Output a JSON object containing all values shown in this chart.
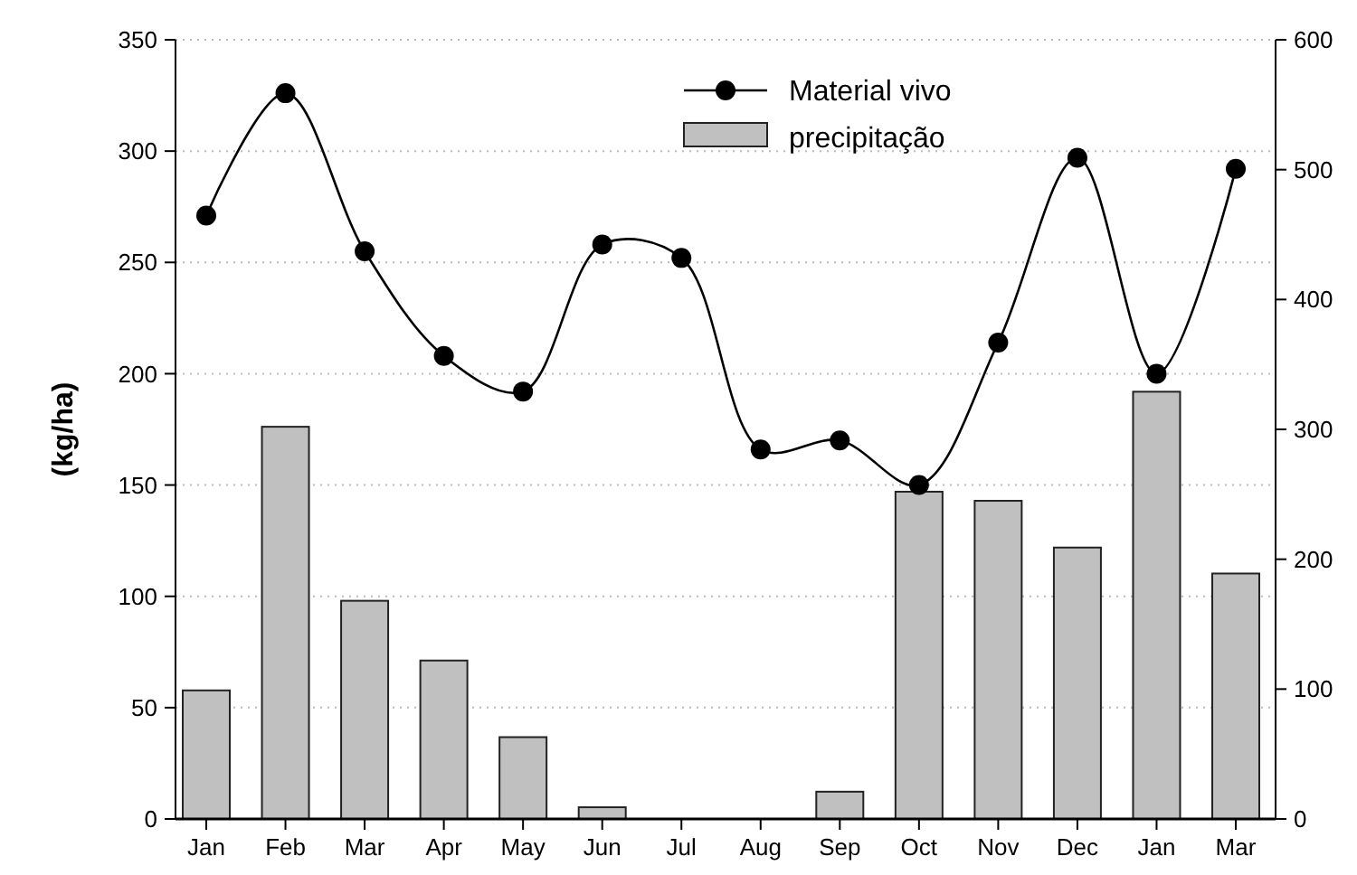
{
  "chart_data": {
    "type": "bar",
    "ylabel": "(kg/ha)",
    "categories": [
      "Jan",
      "Feb",
      "Mar",
      "Apr",
      "May",
      "Jun",
      "Jul",
      "Aug",
      "Sep",
      "Oct",
      "Nov",
      "Dec",
      "Jan",
      "Mar"
    ],
    "series": [
      {
        "name": "Material vivo",
        "type": "line",
        "color": "#000000",
        "marker": "circle",
        "line_style": "solid",
        "values": [
          271,
          326,
          255,
          208,
          192,
          258,
          252,
          166,
          170,
          150,
          214,
          297,
          200,
          292
        ]
      },
      {
        "name": "precipitação",
        "axis": "y2",
        "color": "#c0c0c0",
        "values": [
          99,
          302,
          168,
          122,
          63,
          9,
          0,
          0,
          21,
          252,
          245,
          209,
          329,
          189
        ]
      }
    ],
    "ylim": [
      0,
      350
    ],
    "yticks": [
      0,
      50,
      100,
      150,
      200,
      250,
      300,
      350
    ],
    "y2lim": [
      0,
      600
    ],
    "y2ticks": [
      0,
      100,
      200,
      300,
      400,
      500,
      600
    ],
    "grid": "y",
    "legend": "top right"
  }
}
